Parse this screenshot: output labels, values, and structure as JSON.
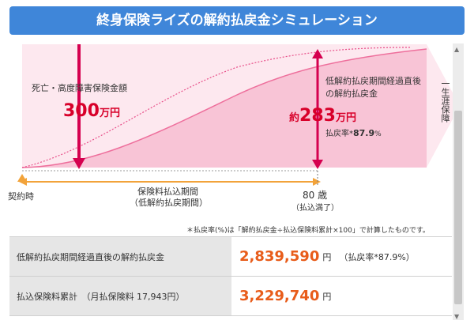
{
  "header": {
    "title": "終身保険ライズの解約払戻金シミュレーション"
  },
  "chart": {
    "death_label": "死亡・高度障害保険金額",
    "death_amount": "300",
    "death_unit": "万円",
    "surrender_label_line1": "低解約払戻期間経過直後",
    "surrender_label_line2": "の解約払戻金",
    "approx_prefix": "約",
    "surrender_amount": "283",
    "surrender_unit": "万円",
    "rate_label": "払戻率*",
    "rate_value": "87.9",
    "rate_unit": "%",
    "lifetime_label": "一生涯保障",
    "contract_label": "契約時",
    "period_label_line1": "保険料払込期間",
    "period_label_line2": "（低解約払戻期間）",
    "age_value": "80",
    "age_unit": "歳",
    "age_note": "（払込満了）",
    "footnote": "＊払戻率(%)は「解約払戻金÷払込保険料累計×100」で計算したものです。"
  },
  "table": {
    "rows": [
      {
        "label": "低解約払戻期間経過直後の解約払戻金",
        "value": "2,839,590",
        "unit": "円",
        "extra": "（払戻率*87.9%）"
      },
      {
        "label": "払込保険料累計　（月払保険料 17,943円）",
        "value": "3,229,740",
        "unit": "円",
        "extra": ""
      }
    ]
  },
  "colors": {
    "header_bg": "#3f86d9",
    "pink_area": "#fbd3e1",
    "pink_light": "#fde8ef",
    "curve": "#ee6f9c",
    "arrow_red": "#d5004f",
    "amount_red": "#d8002a",
    "axis_orange": "#f2a33a",
    "value_orange": "#e85c1a"
  }
}
